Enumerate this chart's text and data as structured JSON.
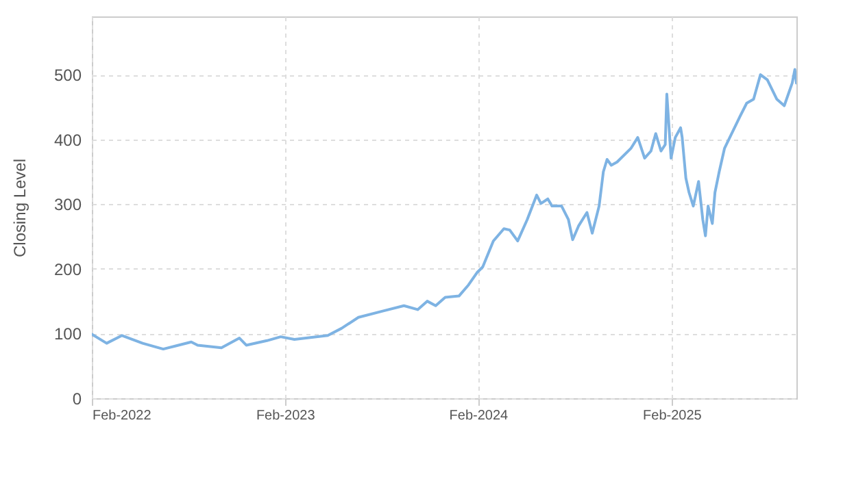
{
  "chart_data": {
    "type": "line",
    "ylabel": "Closing Level",
    "x": [
      "2022-02-01",
      "2022-03-01",
      "2022-03-30",
      "2022-05-08",
      "2022-06-16",
      "2022-08-08",
      "2022-08-20",
      "2022-10-04",
      "2022-11-07",
      "2022-11-20",
      "2022-12-29",
      "2023-01-24",
      "2023-02-19",
      "2023-04-23",
      "2023-05-19",
      "2023-06-20",
      "2023-08-06",
      "2023-09-14",
      "2023-10-10",
      "2023-10-28",
      "2023-11-13",
      "2023-12-01",
      "2023-12-27",
      "2024-01-14",
      "2024-01-30",
      "2024-02-10",
      "2024-03-01",
      "2024-03-21",
      "2024-04-01",
      "2024-04-16",
      "2024-05-04",
      "2024-05-22",
      "2024-05-30",
      "2024-06-12",
      "2024-06-20",
      "2024-07-08",
      "2024-07-21",
      "2024-07-29",
      "2024-08-09",
      "2024-08-25",
      "2024-09-04",
      "2024-09-17",
      "2024-09-25",
      "2024-10-02",
      "2024-10-10",
      "2024-10-21",
      "2024-11-16",
      "2024-11-29",
      "2024-12-12",
      "2024-12-24",
      "2025-01-02",
      "2025-01-12",
      "2025-01-20",
      "2025-01-23",
      "2025-01-31",
      "2025-02-08",
      "2025-02-18",
      "2025-02-21",
      "2025-02-28",
      "2025-03-06",
      "2025-03-14",
      "2025-03-24",
      "2025-04-01",
      "2025-04-06",
      "2025-04-11",
      "2025-04-19",
      "2025-04-24",
      "2025-05-02",
      "2025-05-12",
      "2025-05-28",
      "2025-06-10",
      "2025-06-23",
      "2025-07-06",
      "2025-07-19",
      "2025-08-01",
      "2025-08-19",
      "2025-09-02",
      "2025-09-17",
      "2025-09-22",
      "2025-09-25"
    ],
    "series": [
      {
        "color": "#7eb3e3",
        "values": [
          99,
          85,
          97,
          85,
          76,
          87,
          82,
          78,
          93,
          82,
          89,
          95,
          91,
          97,
          108,
          125,
          135,
          143,
          137,
          150,
          143,
          156,
          158,
          175,
          194,
          203,
          243,
          262,
          260,
          243,
          276,
          314,
          301,
          308,
          297,
          297,
          276,
          245,
          266,
          287,
          255,
          297,
          350,
          369,
          360,
          365,
          386,
          403,
          371,
          382,
          409,
          382,
          392,
          470,
          371,
          403,
          418,
          403,
          340,
          318,
          297,
          335,
          276,
          251,
          297,
          270,
          318,
          350,
          386,
          413,
          435,
          456,
          462,
          500,
          492,
          462,
          452,
          487,
          508,
          487
        ]
      }
    ],
    "xlim": [
      "2022-02-01",
      "2025-09-25"
    ],
    "xticks": [
      {
        "value": "2022-02-01",
        "label": "Feb-2022"
      },
      {
        "value": "2023-02-01",
        "label": "Feb-2023"
      },
      {
        "value": "2024-02-01",
        "label": "Feb-2024"
      },
      {
        "value": "2025-02-01",
        "label": "Feb-2025"
      }
    ],
    "ylim": [
      0,
      590
    ],
    "yticks": [
      0,
      100,
      200,
      300,
      400,
      500
    ],
    "grid": true,
    "line_style": "solid"
  }
}
